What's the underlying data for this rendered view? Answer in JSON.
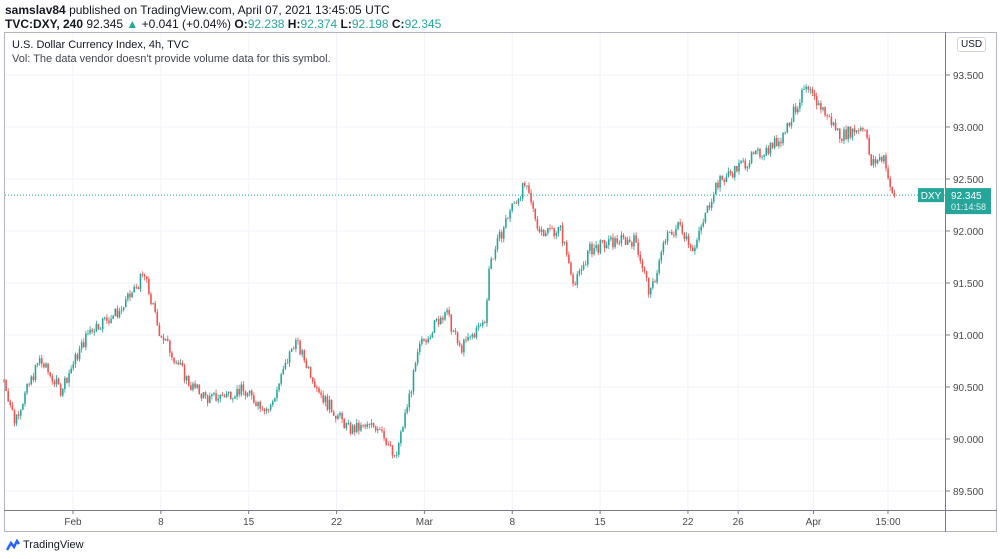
{
  "header": {
    "publisher": "samslav84",
    "published": "published on TradingView.com, April 07, 2021 13:45:05 UTC",
    "symbol": "TVC:DXY, 240",
    "last": "92.345",
    "arrow": "▲",
    "change": "+0.041 (+0.04%)",
    "o_label": "O:",
    "o": "92.238",
    "h_label": "H:",
    "h": "92.374",
    "l_label": "L:",
    "l": "92.198",
    "c_label": "C:",
    "c": "92.345"
  },
  "legend": {
    "title": "U.S. Dollar Currency Index, 4h, TVC",
    "vol": "Vol: The data vendor doesn't provide volume data for this symbol."
  },
  "currency": "USD",
  "price_tag": {
    "symbol": "DXY",
    "price": "92.345",
    "countdown": "01:14:58",
    "color": "#26a69a"
  },
  "brand": "TradingView",
  "colors": {
    "up": "#26a69a",
    "down": "#ef5350"
  },
  "chart_data": {
    "type": "candlestick",
    "interval": "4h",
    "ylim": [
      89.3,
      93.9
    ],
    "grid": true,
    "y_ticks": [
      "93.500",
      "93.000",
      "92.500",
      "92.000",
      "91.500",
      "91.000",
      "90.500",
      "90.000",
      "89.500"
    ],
    "x_ticks": [
      {
        "label": "Feb",
        "date": "2021-02-01"
      },
      {
        "label": "8",
        "date": "2021-02-08"
      },
      {
        "label": "15",
        "date": "2021-02-15"
      },
      {
        "label": "22",
        "date": "2021-02-22"
      },
      {
        "label": "Mar",
        "date": "2021-03-01"
      },
      {
        "label": "8",
        "date": "2021-03-08"
      },
      {
        "label": "15",
        "date": "2021-03-15"
      },
      {
        "label": "22",
        "date": "2021-03-22"
      },
      {
        "label": "26",
        "date": "2021-03-26"
      },
      {
        "label": "Apr",
        "date": "2021-04-01"
      },
      {
        "label": "15:00",
        "date": "2021-04-06T00:00"
      }
    ],
    "close_path": [
      [
        "2021-01-26T12:00",
        90.57
      ],
      [
        "2021-01-27T08:00",
        90.18
      ],
      [
        "2021-01-29T08:00",
        90.76
      ],
      [
        "2021-01-31T00:00",
        90.47
      ],
      [
        "2021-02-02T08:00",
        91.05
      ],
      [
        "2021-02-04T20:00",
        91.24
      ],
      [
        "2021-02-06T16:00",
        91.58
      ],
      [
        "2021-02-07T20:00",
        91.05
      ],
      [
        "2021-02-10T08:00",
        90.52
      ],
      [
        "2021-02-11T20:00",
        90.38
      ],
      [
        "2021-02-14T08:00",
        90.47
      ],
      [
        "2021-02-16T16:00",
        90.28
      ],
      [
        "2021-02-18T16:00",
        90.95
      ],
      [
        "2021-02-21T00:00",
        90.38
      ],
      [
        "2021-02-23T00:00",
        90.09
      ],
      [
        "2021-02-25T12:00",
        90.13
      ],
      [
        "2021-02-26T16:00",
        89.78
      ],
      [
        "2021-02-28T16:00",
        90.9
      ],
      [
        "2021-03-02T16:00",
        91.24
      ],
      [
        "2021-03-03T20:00",
        90.86
      ],
      [
        "2021-03-05T20:00",
        91.14
      ],
      [
        "2021-03-06T04:00",
        91.67
      ],
      [
        "2021-03-07T20:00",
        92.2
      ],
      [
        "2021-03-09T00:00",
        92.44
      ],
      [
        "2021-03-10T04:00",
        92.01
      ],
      [
        "2021-03-11T20:00",
        92.01
      ],
      [
        "2021-03-13T00:00",
        91.48
      ],
      [
        "2021-03-14T04:00",
        91.82
      ],
      [
        "2021-03-16T12:00",
        91.91
      ],
      [
        "2021-03-17T20:00",
        91.91
      ],
      [
        "2021-03-19T00:00",
        91.38
      ],
      [
        "2021-03-20T04:00",
        91.91
      ],
      [
        "2021-03-21T08:00",
        92.06
      ],
      [
        "2021-03-22T12:00",
        91.82
      ],
      [
        "2021-03-24T04:00",
        92.44
      ],
      [
        "2021-03-26T04:00",
        92.63
      ],
      [
        "2021-03-28T04:00",
        92.78
      ],
      [
        "2021-03-29T08:00",
        92.88
      ],
      [
        "2021-03-31T08:00",
        93.36
      ],
      [
        "2021-04-01T12:00",
        93.21
      ],
      [
        "2021-04-03T04:00",
        92.92
      ],
      [
        "2021-04-05T04:00",
        93.02
      ],
      [
        "2021-04-05T12:00",
        92.63
      ],
      [
        "2021-04-06T16:00",
        92.73
      ],
      [
        "2021-04-07T04:00",
        92.35
      ],
      [
        "2021-04-07T12:00",
        92.345
      ]
    ]
  }
}
